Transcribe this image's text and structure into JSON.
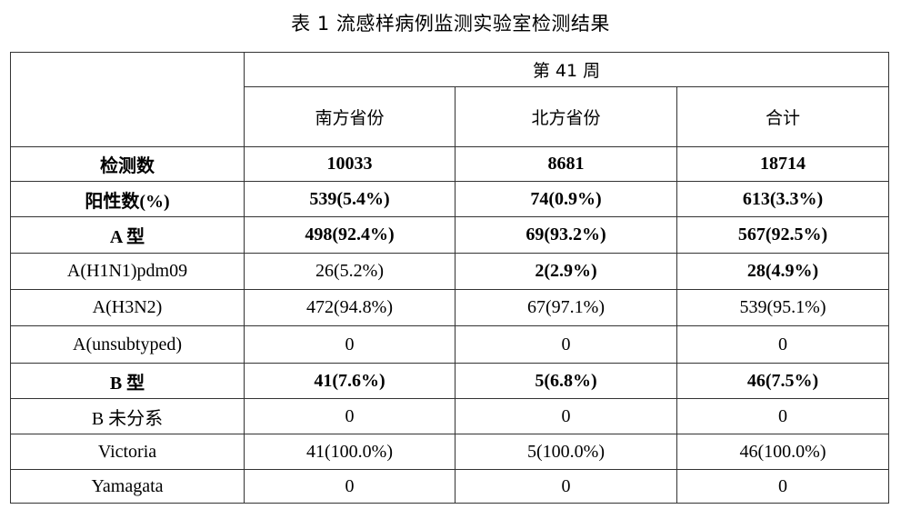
{
  "title": "表 1    流感样病例监测实验室检测结果",
  "header": {
    "week": "第 41 周",
    "columns": [
      "南方省份",
      "北方省份",
      "合计"
    ]
  },
  "rows": [
    {
      "label": "检测数",
      "values": [
        "10033",
        "8681",
        "18714"
      ],
      "bold": [
        true,
        true,
        true,
        true
      ]
    },
    {
      "label": "阳性数(%)",
      "values": [
        "539(5.4%)",
        "74(0.9%)",
        "613(3.3%)"
      ],
      "bold": [
        true,
        true,
        true,
        true
      ]
    },
    {
      "label": "A 型",
      "values": [
        "498(92.4%)",
        "69(93.2%)",
        "567(92.5%)"
      ],
      "bold": [
        true,
        true,
        true,
        true
      ]
    },
    {
      "label": "A(H1N1)pdm09",
      "values": [
        "26(5.2%)",
        "2(2.9%)",
        "28(4.9%)"
      ],
      "bold": [
        false,
        false,
        true,
        true
      ]
    },
    {
      "label": "A(H3N2)",
      "values": [
        "472(94.8%)",
        "67(97.1%)",
        "539(95.1%)"
      ],
      "bold": [
        false,
        false,
        false,
        false
      ]
    },
    {
      "label": "A(unsubtyped)",
      "values": [
        "0",
        "0",
        "0"
      ],
      "bold": [
        false,
        false,
        false,
        false
      ]
    },
    {
      "label": "B 型",
      "values": [
        "41(7.6%)",
        "5(6.8%)",
        "46(7.5%)"
      ],
      "bold": [
        true,
        true,
        true,
        true
      ]
    },
    {
      "label": "B 未分系",
      "values": [
        "0",
        "0",
        "0"
      ],
      "bold": [
        false,
        false,
        false,
        false
      ]
    },
    {
      "label": "Victoria",
      "values": [
        "41(100.0%)",
        "5(100.0%)",
        "46(100.0%)"
      ],
      "bold": [
        false,
        false,
        false,
        false
      ]
    },
    {
      "label": "Yamagata",
      "values": [
        "0",
        "0",
        "0"
      ],
      "bold": [
        false,
        false,
        false,
        false
      ]
    }
  ]
}
